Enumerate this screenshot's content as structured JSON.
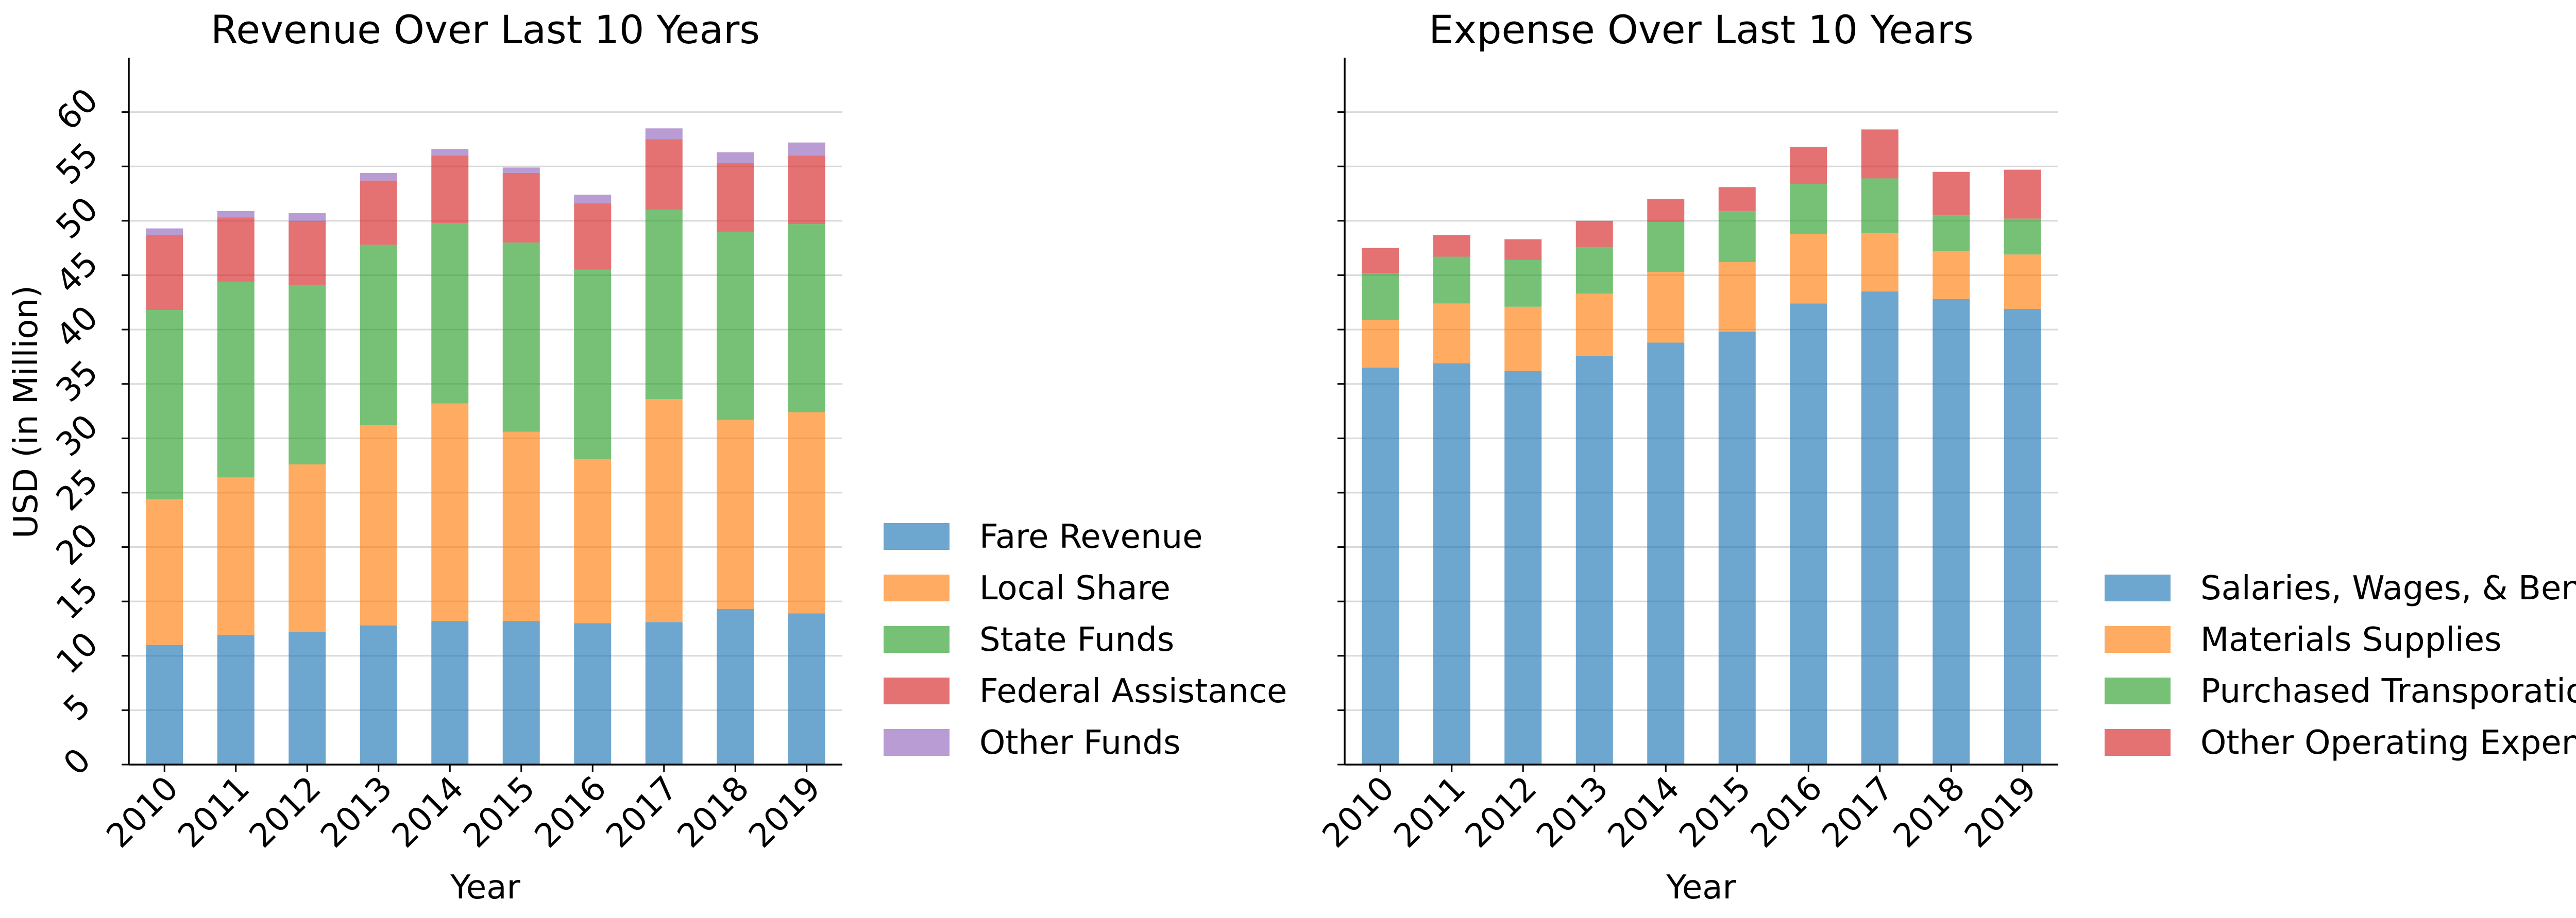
{
  "chart_data": [
    {
      "type": "bar",
      "stacked": true,
      "title": "Revenue Over Last 10 Years",
      "xlabel": "Year",
      "ylabel": "USD (in Million)",
      "ylim": [
        0,
        65
      ],
      "yticks": [
        0,
        5,
        10,
        15,
        20,
        25,
        30,
        35,
        40,
        45,
        50,
        55,
        60
      ],
      "grid": "horizontal",
      "legend": "right",
      "categories": [
        "2010",
        "2011",
        "2012",
        "2013",
        "2014",
        "2015",
        "2016",
        "2017",
        "2018",
        "2019"
      ],
      "series": [
        {
          "name": "Fare Revenue",
          "color": "#1f77b4",
          "values": [
            11.0,
            11.9,
            12.2,
            12.8,
            13.2,
            13.2,
            13.0,
            13.1,
            14.3,
            13.9
          ]
        },
        {
          "name": "Local Share",
          "color": "#ff7f0e",
          "values": [
            13.4,
            14.5,
            15.4,
            18.4,
            20.0,
            17.4,
            15.1,
            20.5,
            17.4,
            18.5
          ]
        },
        {
          "name": "State Funds",
          "color": "#2ca02c",
          "values": [
            17.4,
            18.0,
            16.5,
            16.6,
            16.6,
            17.4,
            17.4,
            17.4,
            17.3,
            17.3
          ]
        },
        {
          "name": "Federal Assistance",
          "color": "#d62728",
          "values": [
            6.9,
            5.9,
            5.9,
            5.9,
            6.2,
            6.4,
            6.1,
            6.5,
            6.3,
            6.3
          ]
        },
        {
          "name": "Other Funds",
          "color": "#9467bd",
          "values": [
            0.6,
            0.6,
            0.7,
            0.7,
            0.6,
            0.5,
            0.8,
            1.0,
            1.0,
            1.2
          ]
        }
      ]
    },
    {
      "type": "bar",
      "stacked": true,
      "title": "Expense Over Last 10 Years",
      "xlabel": "Year",
      "ylim": [
        0,
        65
      ],
      "shared_y": true,
      "grid": "horizontal",
      "legend": "right",
      "categories": [
        "2010",
        "2011",
        "2012",
        "2013",
        "2014",
        "2015",
        "2016",
        "2017",
        "2018",
        "2019"
      ],
      "series": [
        {
          "name": "Salaries, Wages, & Benfits",
          "color": "#1f77b4",
          "values": [
            36.5,
            36.9,
            36.2,
            37.6,
            38.8,
            39.8,
            42.4,
            43.5,
            42.8,
            41.9
          ]
        },
        {
          "name": "Materials Supplies",
          "color": "#ff7f0e",
          "values": [
            4.4,
            5.5,
            5.9,
            5.7,
            6.5,
            6.4,
            6.4,
            5.4,
            4.4,
            5.0
          ]
        },
        {
          "name": "Purchased Transporation",
          "color": "#2ca02c",
          "values": [
            4.3,
            4.3,
            4.3,
            4.3,
            4.6,
            4.7,
            4.6,
            5.0,
            3.3,
            3.3
          ]
        },
        {
          "name": "Other Operating Expenses",
          "color": "#d62728",
          "values": [
            2.3,
            2.0,
            1.9,
            2.4,
            2.1,
            2.2,
            3.4,
            4.5,
            4.0,
            4.5
          ]
        }
      ]
    }
  ]
}
